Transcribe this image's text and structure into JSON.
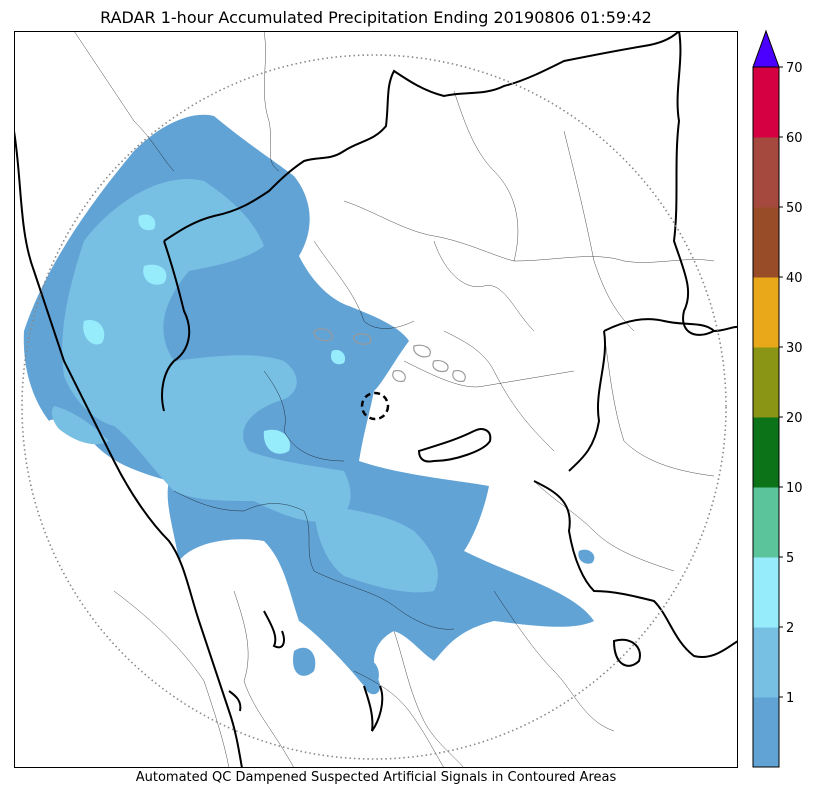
{
  "title": "RADAR 1-hour Accumulated Precipitation Ending 20190806 01:59:42",
  "caption": "Automated QC Dampened Suspected Artificial Signals in Contoured Areas",
  "colorbar": {
    "extend": "max",
    "extend_color": "#4b00ff",
    "levels": [
      {
        "label": "",
        "color": "#62a3d6"
      },
      {
        "label": "1",
        "color": "#78bfe4"
      },
      {
        "label": "2",
        "color": "#97ecfc"
      },
      {
        "label": "5",
        "color": "#5cc49b"
      },
      {
        "label": "10",
        "color": "#0c7318"
      },
      {
        "label": "20",
        "color": "#8a9415"
      },
      {
        "label": "30",
        "color": "#e8a81a"
      },
      {
        "label": "40",
        "color": "#984c28"
      },
      {
        "label": "50",
        "color": "#a5493f"
      },
      {
        "label": "60",
        "color": "#d40041"
      },
      {
        "label": "70",
        "color": ""
      }
    ]
  },
  "map": {
    "radar_range_ring": "dotted",
    "radar_site_marker": "dashed-circle",
    "precip_colors": {
      "light": "#62a3d6",
      "moderate": "#78bfe4",
      "heavy": "#97ecfc"
    }
  }
}
